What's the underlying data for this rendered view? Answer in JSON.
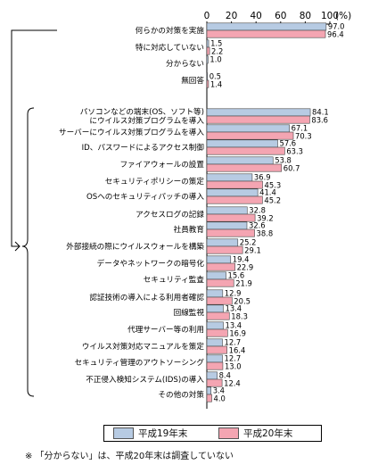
{
  "chart_data": {
    "type": "bar",
    "orientation": "horizontal",
    "unit_label": "(%)",
    "xlim": [
      0,
      100
    ],
    "xticks": [
      0,
      20,
      40,
      60,
      80,
      100
    ],
    "grid": false,
    "legend_position": "bottom",
    "categories": [
      "何らかの対策を実施",
      "特に対応していない",
      "分からない",
      "無回答",
      "パソコンなどの端末(OS、ソフト等)\nにウイルス対策プログラムを導入",
      "サーバーにウイルス対策プログラムを導入",
      "ID、パスワードによるアクセス制御",
      "ファイアウォールの設置",
      "セキュリティポリシーの策定",
      "OSへのセキュリティパッチの導入",
      "アクセスログの記録",
      "社員教育",
      "外部接続の際にウイルスウォールを構築",
      "データやネットワークの暗号化",
      "セキュリティ監査",
      "認証技術の導入による利用者確認",
      "回線監視",
      "代理サーバー等の利用",
      "ウイルス対策対応マニュアルを策定",
      "セキュリティ管理のアウトソーシング",
      "不正侵入検知システム(IDS)の導入",
      "その他の対策"
    ],
    "series": [
      {
        "name": "平成19年末",
        "color": "#b7cbe3",
        "values": [
          97.0,
          1.5,
          1.0,
          0.5,
          84.1,
          67.1,
          57.6,
          53.8,
          36.9,
          41.4,
          32.8,
          32.6,
          25.2,
          19.4,
          15.6,
          12.9,
          13.4,
          13.4,
          12.7,
          12.7,
          8.4,
          3.4
        ],
        "labels": [
          "97.0",
          "1.5",
          "1.0",
          "0.5",
          "84.1",
          "67.1",
          "57.6",
          "53.8",
          "36.9",
          "41.4",
          "32.8",
          "32.6",
          "25.2",
          "19.4",
          "15.6",
          "12.9",
          "13.4",
          "13.4",
          "12.7",
          "12.7",
          "8.4",
          "3.4"
        ]
      },
      {
        "name": "平成20年末",
        "color": "#f4a5b2",
        "values": [
          96.4,
          2.2,
          null,
          1.4,
          83.6,
          70.3,
          63.3,
          60.7,
          45.3,
          45.2,
          39.2,
          38.8,
          29.1,
          22.9,
          21.9,
          20.5,
          18.3,
          16.9,
          16.4,
          13.0,
          12.4,
          4.0
        ],
        "labels": [
          "96.4",
          "2.2",
          "",
          "1.4",
          "83.6",
          "70.3",
          "63.3",
          "60.7",
          "45.3",
          "45.2",
          "39.2",
          "38.8",
          "29.1",
          "22.9",
          "21.9",
          "20.5",
          "18.3",
          "16.9",
          "16.4",
          "13.0",
          "12.4",
          "4.0"
        ]
      }
    ]
  },
  "legend": {
    "item_1": "平成19年末",
    "item_2": "平成20年末"
  },
  "footnote": "※ 「分からない」は、平成20年末は調査していない",
  "colors": {
    "series_1": "#b7cbe3",
    "series_2": "#f4a5b2",
    "bar_border": "#444444"
  }
}
